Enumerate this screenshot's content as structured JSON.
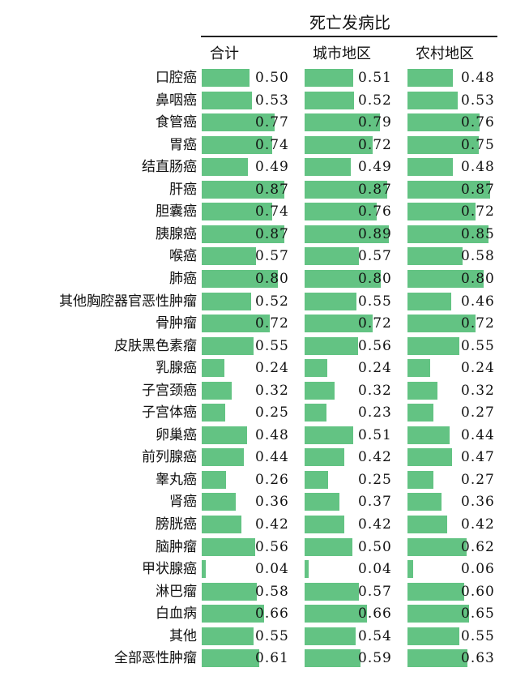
{
  "chart_data": {
    "type": "bar",
    "title": "死亡发病比",
    "categories": [
      "口腔癌",
      "鼻咽癌",
      "食管癌",
      "胃癌",
      "结直肠癌",
      "肝癌",
      "胆囊癌",
      "胰腺癌",
      "喉癌",
      "肺癌",
      "其他胸腔器官恶性肿瘤",
      "骨肿瘤",
      "皮肤黑色素瘤",
      "乳腺癌",
      "子宫颈癌",
      "子宫体癌",
      "卵巢癌",
      "前列腺癌",
      "睾丸癌",
      "肾癌",
      "膀胱癌",
      "脑肿瘤",
      "甲状腺癌",
      "淋巴瘤",
      "白血病",
      "其他",
      "全部恶性肿瘤"
    ],
    "series": [
      {
        "name": "合计",
        "values": [
          0.5,
          0.53,
          0.77,
          0.74,
          0.49,
          0.87,
          0.74,
          0.87,
          0.57,
          0.8,
          0.52,
          0.72,
          0.55,
          0.24,
          0.32,
          0.25,
          0.48,
          0.44,
          0.26,
          0.36,
          0.42,
          0.56,
          0.04,
          0.58,
          0.66,
          0.55,
          0.61
        ]
      },
      {
        "name": "城市地区",
        "values": [
          0.51,
          0.52,
          0.79,
          0.72,
          0.49,
          0.87,
          0.76,
          0.89,
          0.57,
          0.8,
          0.55,
          0.72,
          0.56,
          0.24,
          0.32,
          0.23,
          0.51,
          0.42,
          0.25,
          0.37,
          0.42,
          0.5,
          0.04,
          0.57,
          0.66,
          0.54,
          0.59
        ]
      },
      {
        "name": "农村地区",
        "values": [
          0.48,
          0.53,
          0.76,
          0.75,
          0.48,
          0.87,
          0.72,
          0.85,
          0.58,
          0.8,
          0.46,
          0.72,
          0.55,
          0.24,
          0.32,
          0.27,
          0.44,
          0.47,
          0.27,
          0.36,
          0.42,
          0.62,
          0.06,
          0.6,
          0.65,
          0.55,
          0.63
        ]
      }
    ],
    "xlim": [
      0,
      1
    ],
    "bar_color": "#63c383",
    "value_format": "0.00"
  }
}
